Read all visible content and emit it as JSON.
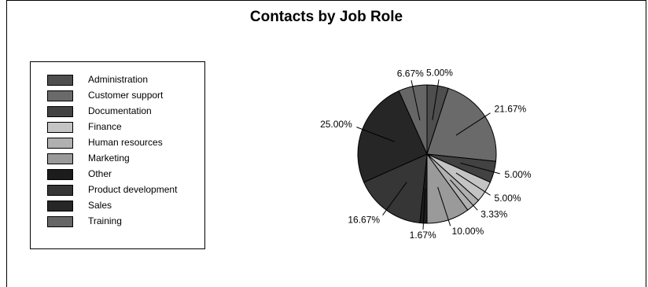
{
  "chart_data": {
    "type": "pie",
    "title": "Contacts by Job Role",
    "categories": [
      "Administration",
      "Customer support",
      "Documentation",
      "Finance",
      "Human resources",
      "Marketing",
      "Other",
      "Product development",
      "Sales",
      "Training"
    ],
    "values": [
      5.0,
      21.67,
      5.0,
      5.0,
      3.33,
      10.0,
      1.67,
      16.67,
      25.0,
      6.67
    ],
    "value_labels": [
      "5.00%",
      "21.67%",
      "5.00%",
      "5.00%",
      "3.33%",
      "10.00%",
      "1.67%",
      "16.67%",
      "25.00%",
      "6.67%"
    ],
    "colors": [
      "#4e4e4e",
      "#6a6a6a",
      "#424242",
      "#c4c4c4",
      "#b0b0b0",
      "#9a9a9a",
      "#1c1c1c",
      "#363636",
      "#262626",
      "#666666"
    ],
    "legend": "left"
  }
}
